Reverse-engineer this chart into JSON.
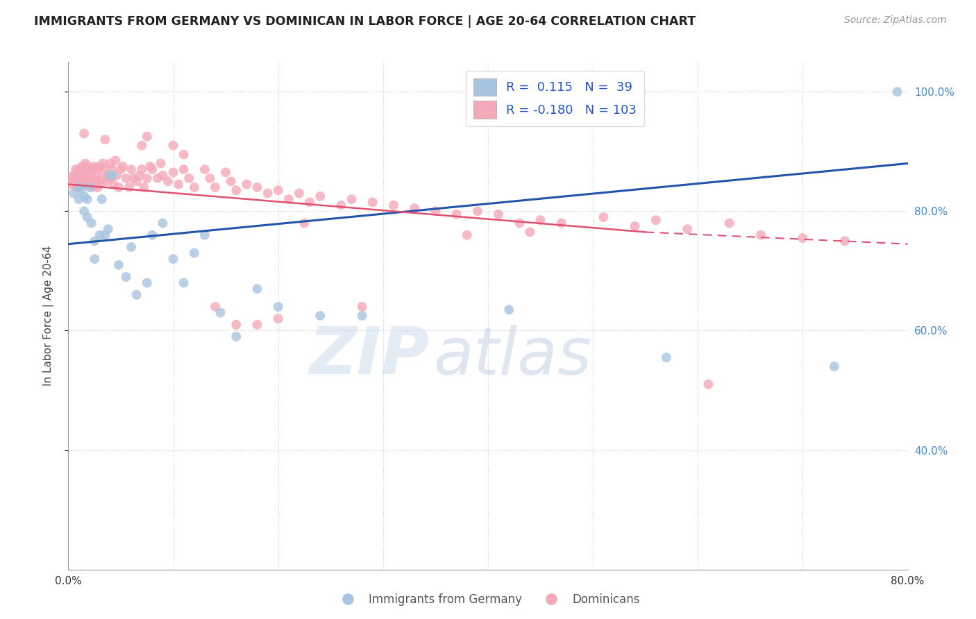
{
  "title": "IMMIGRANTS FROM GERMANY VS DOMINICAN IN LABOR FORCE | AGE 20-64 CORRELATION CHART",
  "source": "Source: ZipAtlas.com",
  "ylabel": "In Labor Force | Age 20-64",
  "xlim": [
    0.0,
    0.8
  ],
  "ylim": [
    0.2,
    1.05
  ],
  "xticks": [
    0.0,
    0.1,
    0.2,
    0.3,
    0.4,
    0.5,
    0.6,
    0.7,
    0.8
  ],
  "xticklabels": [
    "0.0%",
    "",
    "",
    "",
    "",
    "",
    "",
    "",
    "80.0%"
  ],
  "yticks_right": [
    0.4,
    0.6,
    0.8,
    1.0
  ],
  "ytick_labels_right": [
    "40.0%",
    "60.0%",
    "80.0%",
    "100.0%"
  ],
  "blue_R": 0.115,
  "blue_N": 39,
  "pink_R": -0.18,
  "pink_N": 103,
  "blue_color": "#a8c4e0",
  "pink_color": "#f4a8b8",
  "blue_line_color": "#2255aa",
  "pink_line_color": "#e05070",
  "watermark_zip": "ZIP",
  "watermark_atlas": "atlas",
  "legend_blue_label": "Immigrants from Germany",
  "legend_pink_label": "Dominicans",
  "blue_x": [
    0.005,
    0.01,
    0.01,
    0.012,
    0.015,
    0.015,
    0.018,
    0.018,
    0.02,
    0.022,
    0.025,
    0.025,
    0.03,
    0.032,
    0.035,
    0.038,
    0.04,
    0.042,
    0.048,
    0.055,
    0.06,
    0.065,
    0.075,
    0.08,
    0.09,
    0.1,
    0.11,
    0.12,
    0.13,
    0.145,
    0.16,
    0.18,
    0.2,
    0.24,
    0.28,
    0.42,
    0.57,
    0.73,
    0.79
  ],
  "blue_y": [
    0.83,
    0.84,
    0.82,
    0.835,
    0.825,
    0.8,
    0.82,
    0.79,
    0.84,
    0.78,
    0.75,
    0.72,
    0.76,
    0.82,
    0.76,
    0.77,
    0.86,
    0.86,
    0.71,
    0.69,
    0.74,
    0.66,
    0.68,
    0.76,
    0.78,
    0.72,
    0.68,
    0.73,
    0.76,
    0.63,
    0.59,
    0.67,
    0.64,
    0.625,
    0.625,
    0.635,
    0.555,
    0.54,
    1.0
  ],
  "pink_x": [
    0.002,
    0.003,
    0.005,
    0.006,
    0.007,
    0.008,
    0.008,
    0.01,
    0.01,
    0.01,
    0.012,
    0.012,
    0.013,
    0.014,
    0.015,
    0.015,
    0.016,
    0.017,
    0.018,
    0.018,
    0.019,
    0.02,
    0.02,
    0.021,
    0.022,
    0.023,
    0.023,
    0.025,
    0.025,
    0.026,
    0.027,
    0.028,
    0.028,
    0.03,
    0.03,
    0.032,
    0.033,
    0.035,
    0.036,
    0.038,
    0.04,
    0.04,
    0.042,
    0.043,
    0.045,
    0.046,
    0.048,
    0.05,
    0.052,
    0.055,
    0.058,
    0.06,
    0.062,
    0.065,
    0.068,
    0.07,
    0.072,
    0.075,
    0.078,
    0.08,
    0.085,
    0.088,
    0.09,
    0.095,
    0.1,
    0.105,
    0.11,
    0.115,
    0.12,
    0.13,
    0.135,
    0.14,
    0.15,
    0.155,
    0.16,
    0.17,
    0.18,
    0.19,
    0.2,
    0.21,
    0.22,
    0.23,
    0.24,
    0.26,
    0.27,
    0.29,
    0.31,
    0.33,
    0.35,
    0.37,
    0.39,
    0.41,
    0.43,
    0.45,
    0.47,
    0.51,
    0.54,
    0.56,
    0.59,
    0.63,
    0.66,
    0.7,
    0.74
  ],
  "pink_y": [
    0.855,
    0.845,
    0.86,
    0.85,
    0.87,
    0.855,
    0.84,
    0.87,
    0.855,
    0.84,
    0.86,
    0.845,
    0.875,
    0.855,
    0.87,
    0.85,
    0.88,
    0.85,
    0.865,
    0.845,
    0.875,
    0.87,
    0.85,
    0.86,
    0.85,
    0.87,
    0.84,
    0.875,
    0.85,
    0.85,
    0.86,
    0.87,
    0.84,
    0.875,
    0.845,
    0.855,
    0.88,
    0.87,
    0.85,
    0.86,
    0.88,
    0.855,
    0.87,
    0.845,
    0.885,
    0.86,
    0.84,
    0.87,
    0.875,
    0.855,
    0.84,
    0.87,
    0.855,
    0.85,
    0.86,
    0.87,
    0.84,
    0.855,
    0.875,
    0.87,
    0.855,
    0.88,
    0.86,
    0.85,
    0.865,
    0.845,
    0.87,
    0.855,
    0.84,
    0.87,
    0.855,
    0.84,
    0.865,
    0.85,
    0.835,
    0.845,
    0.84,
    0.83,
    0.835,
    0.82,
    0.83,
    0.815,
    0.825,
    0.81,
    0.82,
    0.815,
    0.81,
    0.805,
    0.8,
    0.795,
    0.8,
    0.795,
    0.78,
    0.785,
    0.78,
    0.79,
    0.775,
    0.785,
    0.77,
    0.78,
    0.76,
    0.755,
    0.75
  ],
  "pink_outlier_x": [
    0.015,
    0.035,
    0.07,
    0.075,
    0.1,
    0.11,
    0.14,
    0.16,
    0.18,
    0.2,
    0.225,
    0.28,
    0.38,
    0.44,
    0.61
  ],
  "pink_outlier_y": [
    0.93,
    0.92,
    0.91,
    0.925,
    0.91,
    0.895,
    0.64,
    0.61,
    0.61,
    0.62,
    0.78,
    0.64,
    0.76,
    0.765,
    0.51
  ]
}
